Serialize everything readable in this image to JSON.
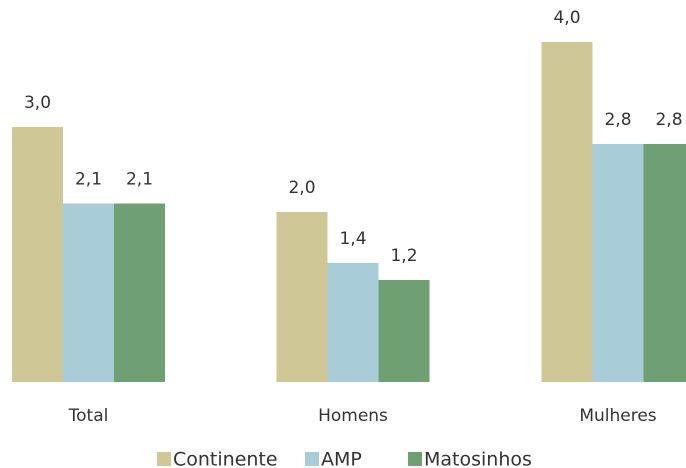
{
  "chart_data": {
    "type": "bar",
    "categories": [
      "Total",
      "Homens",
      "Mulheres"
    ],
    "series": [
      {
        "name": "Continente",
        "color": "#cfc795",
        "values": [
          3.0,
          2.0,
          4.0
        ],
        "value_labels": [
          "3,0",
          "2,0",
          "4,0"
        ]
      },
      {
        "name": "AMP",
        "color": "#a9cdd8",
        "values": [
          2.1,
          1.4,
          2.8
        ],
        "value_labels": [
          "2,1",
          "1,4",
          "2,8"
        ]
      },
      {
        "name": "Matosinhos",
        "color": "#6fa073",
        "values": [
          2.1,
          1.2,
          2.8
        ],
        "value_labels": [
          "2,1",
          "1,2",
          "2,8"
        ]
      }
    ],
    "legend": "bottom"
  }
}
